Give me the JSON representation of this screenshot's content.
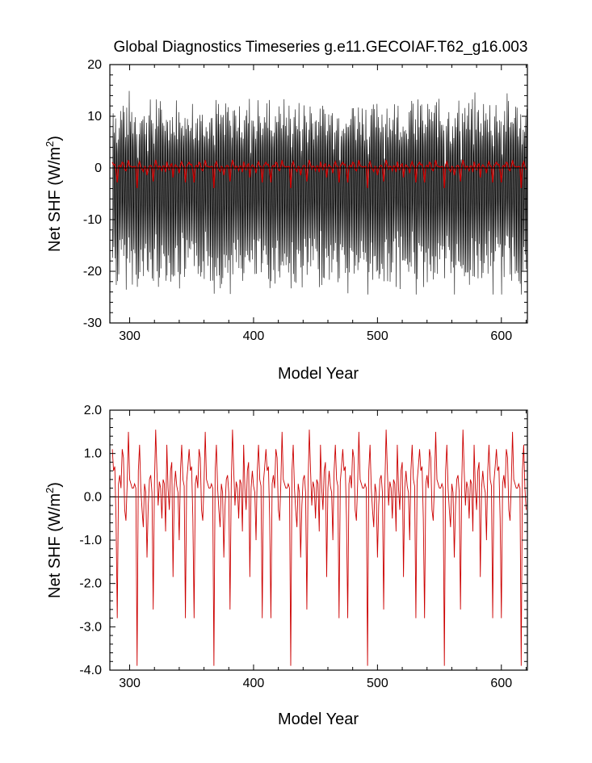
{
  "title": "Global Diagnostics Timeseries g.e11.GECOIAF.T62_g16.003",
  "chart_data": [
    {
      "type": "line",
      "xlabel": "Model Year",
      "ylabel_main": "Net SHF (W/m",
      "ylabel_sup": "2",
      "ylabel_close": ")",
      "xlim": [
        284,
        621
      ],
      "ylim": [
        -30,
        20
      ],
      "xticks": [
        300,
        400,
        500,
        600
      ],
      "xtick_labels": [
        "300",
        "400",
        "500",
        "600"
      ],
      "yticks": [
        -30,
        -20,
        -10,
        0,
        10,
        20
      ],
      "ytick_labels": [
        "-30",
        "-20",
        "-10",
        "0",
        "10",
        "20"
      ],
      "reference_line": 0,
      "series": [
        {
          "color": "#000000",
          "kind": "monthly",
          "description_values": {
            "min": -24,
            "max": 15,
            "cycle_years": 1
          }
        },
        {
          "color": "#cc0000",
          "kind": "annual"
        }
      ]
    },
    {
      "type": "line",
      "xlabel": "Model Year",
      "ylabel_main": "Net SHF (W/m",
      "ylabel_sup": "2",
      "ylabel_close": ")",
      "xlim": [
        284,
        621
      ],
      "ylim": [
        -4.0,
        2.0
      ],
      "xticks": [
        300,
        400,
        500,
        600
      ],
      "xtick_labels": [
        "300",
        "400",
        "500",
        "600"
      ],
      "yticks": [
        -4.0,
        -3.0,
        -2.0,
        -1.0,
        0.0,
        1.0,
        2.0
      ],
      "ytick_labels": [
        "-4.0",
        "-3.0",
        "-2.0",
        "-1.0",
        "0.0",
        "1.0",
        "2.0"
      ],
      "reference_line": 0,
      "series": [
        {
          "color": "#cc0000",
          "kind": "annual",
          "period_years": 62,
          "cycle_values": [
            1.1,
            0.6,
            0.7,
            -0.5,
            -2.8,
            0.3,
            0.5,
            0.2,
            1.1,
            0.9,
            -0.3,
            -0.55,
            0.3,
            1.5,
            0.4,
            0.3,
            0.2,
            0.2,
            0.3,
            0.2,
            -3.9,
            0.6,
            1.2,
            0.2,
            -0.3,
            -0.7,
            0.3,
            0.1,
            -1.4,
            -0.2,
            0.4,
            0.5,
            0.1,
            -2.6,
            0.3,
            1.55,
            0.6,
            -0.2,
            0.35,
            0.2,
            -0.5,
            0.4,
            0.3,
            -0.8,
            1.2,
            0.2,
            -0.3,
            0.6,
            0.8,
            -1.85,
            0.2,
            0.6,
            0.25,
            0.1,
            -1.0,
            0.6,
            1.2,
            0.4,
            0.25,
            -2.8,
            0.35,
            0.7
          ]
        }
      ]
    }
  ]
}
